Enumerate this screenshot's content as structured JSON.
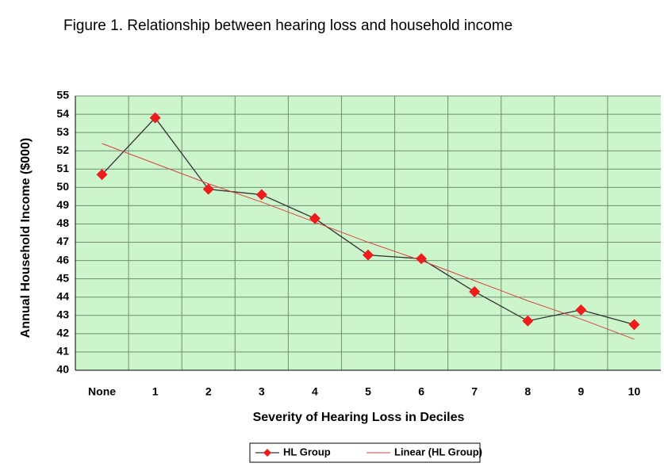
{
  "chart_data": {
    "type": "line",
    "title": "Figure 1. Relationship between hearing loss and household income",
    "x_label": "Severity of Hearing Loss in Deciles",
    "y_label": "Annual Household Income ($000)",
    "categories": [
      "None",
      "1",
      "2",
      "3",
      "4",
      "5",
      "6",
      "7",
      "8",
      "9",
      "10"
    ],
    "series": [
      {
        "name": "HL Group",
        "color": "#333333",
        "marker_color": "#ee1c1c",
        "values": [
          50.7,
          53.8,
          49.9,
          49.6,
          48.3,
          46.3,
          46.1,
          44.3,
          42.7,
          43.3,
          42.5
        ]
      },
      {
        "name": "Linear (HL Group)",
        "color": "#e04040",
        "values": [
          52.4,
          51.3,
          50.2,
          49.2,
          48.1,
          47.0,
          46.0,
          44.9,
          43.8,
          42.8,
          41.7
        ]
      }
    ],
    "ylim": [
      40,
      55
    ],
    "yticks": [
      40,
      41,
      42,
      43,
      44,
      45,
      46,
      47,
      48,
      49,
      50,
      51,
      52,
      53,
      54,
      55
    ],
    "grid": true,
    "legend": "bottom"
  }
}
